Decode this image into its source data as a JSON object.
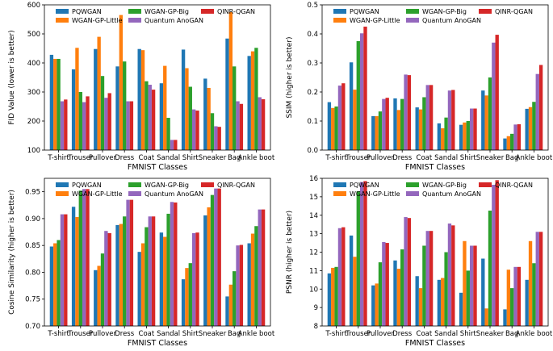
{
  "colors": {
    "PQWGAN": "#1f77b4",
    "WGAN-GP-Little": "#ff7f0e",
    "WGAN-GP-Big": "#2ca02c",
    "Quantum AnoGAN": "#9467bd",
    "QINR-QGAN": "#d62728"
  },
  "chart_data": [
    {
      "type": "bar",
      "xlabel": "FMNIST Classes",
      "ylabel": "FID Value (lower is better)",
      "ylim": [
        100,
        600
      ],
      "yticks": [
        100,
        200,
        300,
        400,
        500,
        600
      ],
      "legend_position": "top",
      "grid": false,
      "categories": [
        "T-shirt",
        "Trouser",
        "Pullover",
        "Dress",
        "Coat",
        "Sandal",
        "Shirt",
        "Sneaker",
        "Bag",
        "Ankle boot"
      ],
      "series": [
        {
          "name": "PQWGAN",
          "values": [
            428,
            378,
            448,
            388,
            448,
            330,
            446,
            346,
            484,
            424
          ]
        },
        {
          "name": "WGAN-GP-Little",
          "values": [
            414,
            452,
            490,
            565,
            444,
            390,
            382,
            314,
            575,
            440
          ]
        },
        {
          "name": "WGAN-GP-Big",
          "values": [
            414,
            300,
            355,
            405,
            337,
            211,
            318,
            227,
            388,
            452
          ]
        },
        {
          "name": "Quantum AnoGAN",
          "values": [
            268,
            265,
            280,
            268,
            325,
            135,
            240,
            182,
            268,
            282
          ]
        },
        {
          "name": "QINR-QGAN",
          "values": [
            274,
            285,
            296,
            268,
            308,
            135,
            236,
            180,
            259,
            275
          ]
        }
      ]
    },
    {
      "type": "bar",
      "xlabel": "FMNIST Classes",
      "ylabel": "SSIM (higher is better)",
      "ylim": [
        0.0,
        0.5
      ],
      "yticks": [
        "0.0",
        "0.1",
        "0.2",
        "0.3",
        "0.4",
        "0.5"
      ],
      "legend_position": "top",
      "grid": false,
      "categories": [
        "T-shirt",
        "Trouser",
        "Pullover",
        "Dress",
        "Coat",
        "Sandal",
        "Shirt",
        "Sneaker",
        "Bag",
        "Ankle boot"
      ],
      "series": [
        {
          "name": "PQWGAN",
          "values": [
            0.165,
            0.302,
            0.117,
            0.178,
            0.147,
            0.092,
            0.087,
            0.205,
            0.04,
            0.142
          ]
        },
        {
          "name": "WGAN-GP-Little",
          "values": [
            0.145,
            0.208,
            0.117,
            0.138,
            0.14,
            0.075,
            0.095,
            0.188,
            0.048,
            0.148
          ]
        },
        {
          "name": "WGAN-GP-Big",
          "values": [
            0.15,
            0.375,
            0.133,
            0.176,
            0.182,
            0.112,
            0.1,
            0.25,
            0.056,
            0.166
          ]
        },
        {
          "name": "Quantum AnoGAN",
          "values": [
            0.222,
            0.402,
            0.176,
            0.26,
            0.224,
            0.205,
            0.143,
            0.37,
            0.088,
            0.262
          ]
        },
        {
          "name": "QINR-QGAN",
          "values": [
            0.23,
            0.425,
            0.18,
            0.258,
            0.224,
            0.207,
            0.143,
            0.397,
            0.089,
            0.293
          ]
        }
      ]
    },
    {
      "type": "bar",
      "xlabel": "FMNIST Classes",
      "ylabel": "Cosine Similarity (higher is better)",
      "ylim": [
        0.7,
        0.975
      ],
      "yticks": [
        "0.70",
        "0.75",
        "0.80",
        "0.85",
        "0.90",
        "0.95"
      ],
      "legend_position": "top",
      "grid": false,
      "categories": [
        "T-shirt",
        "Trouser",
        "Pullover",
        "Dress",
        "Coat",
        "Sandal",
        "Shirt",
        "Sneaker",
        "Bag",
        "Ankle boot"
      ],
      "series": [
        {
          "name": "PQWGAN",
          "values": [
            0.848,
            0.922,
            0.804,
            0.888,
            0.838,
            0.874,
            0.787,
            0.906,
            0.755,
            0.854
          ]
        },
        {
          "name": "WGAN-GP-Little",
          "values": [
            0.854,
            0.903,
            0.812,
            0.89,
            0.854,
            0.866,
            0.808,
            0.921,
            0.777,
            0.872
          ]
        },
        {
          "name": "WGAN-GP-Big",
          "values": [
            0.86,
            0.952,
            0.835,
            0.904,
            0.884,
            0.909,
            0.817,
            0.944,
            0.802,
            0.886
          ]
        },
        {
          "name": "Quantum AnoGAN",
          "values": [
            0.908,
            0.955,
            0.877,
            0.935,
            0.904,
            0.931,
            0.873,
            0.956,
            0.85,
            0.917
          ]
        },
        {
          "name": "QINR-QGAN",
          "values": [
            0.908,
            0.955,
            0.873,
            0.935,
            0.904,
            0.93,
            0.874,
            0.956,
            0.851,
            0.917
          ]
        }
      ]
    },
    {
      "type": "bar",
      "xlabel": "FMNIST Classes",
      "ylabel": "PSNR (higher is better)",
      "ylim": [
        8,
        16
      ],
      "yticks": [
        8,
        9,
        10,
        11,
        12,
        13,
        14,
        15,
        16
      ],
      "legend_position": "top",
      "grid": false,
      "categories": [
        "T-shirt",
        "Trouser",
        "Pullover",
        "Dress",
        "Coat",
        "Sandal",
        "Shirt",
        "Sneaker",
        "Bag",
        "Ankle boot"
      ],
      "series": [
        {
          "name": "PQWGAN",
          "values": [
            10.85,
            12.9,
            10.2,
            11.55,
            10.7,
            10.5,
            9.8,
            11.65,
            8.9,
            10.5
          ]
        },
        {
          "name": "WGAN-GP-Little",
          "values": [
            11.15,
            11.75,
            10.3,
            11.1,
            10.05,
            10.6,
            12.6,
            8.95,
            11.05,
            12.6
          ]
        },
        {
          "name": "WGAN-GP-Big",
          "values": [
            11.2,
            15.3,
            11.45,
            12.15,
            12.35,
            12.0,
            11.0,
            14.25,
            10.05,
            11.4
          ]
        },
        {
          "name": "Quantum AnoGAN",
          "values": [
            13.3,
            15.8,
            12.55,
            13.9,
            13.15,
            13.55,
            12.35,
            15.65,
            11.2,
            13.1
          ]
        },
        {
          "name": "QINR-QGAN",
          "values": [
            13.35,
            15.85,
            12.5,
            13.85,
            13.15,
            13.45,
            12.35,
            15.9,
            11.2,
            13.1
          ]
        }
      ]
    }
  ]
}
